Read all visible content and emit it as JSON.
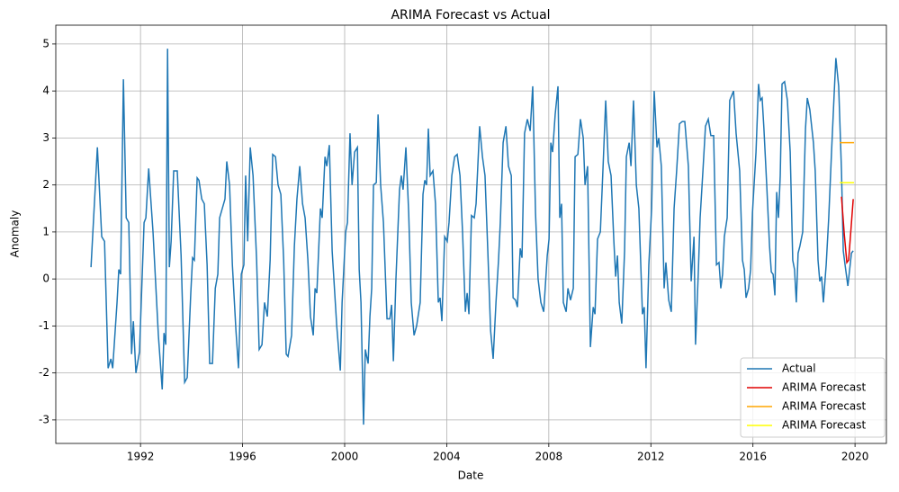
{
  "chart_data": {
    "type": "line",
    "title": "ARIMA Forecast vs Actual",
    "x_label": "Date",
    "y_label": "Anomaly",
    "xlim": [
      1988.68,
      2021.23
    ],
    "ylim": [
      -3.5,
      5.4
    ],
    "xticks": [
      1992,
      1996,
      2000,
      2004,
      2008,
      2012,
      2016,
      2020
    ],
    "yticks": [
      -3,
      -2,
      -1,
      0,
      1,
      2,
      3,
      4,
      5
    ],
    "grid": true,
    "legend": "lower right",
    "series": [
      {
        "name": "Actual",
        "color": "#1f77b4",
        "x": [
          1990.06,
          1990.31,
          1990.48,
          1990.59,
          1990.73,
          1990.84,
          1990.91,
          1991.08,
          1991.15,
          1991.22,
          1991.33,
          1991.44,
          1991.54,
          1991.65,
          1991.72,
          1991.82,
          1991.96,
          1992.14,
          1992.21,
          1992.32,
          1992.49,
          1992.7,
          1992.85,
          1992.92,
          1992.99,
          1993.06,
          1993.13,
          1993.2,
          1993.3,
          1993.44,
          1993.59,
          1993.73,
          1993.83,
          1993.97,
          1994.04,
          1994.11,
          1994.22,
          1994.29,
          1994.4,
          1994.5,
          1994.61,
          1994.71,
          1994.82,
          1994.93,
          1995.03,
          1995.1,
          1995.31,
          1995.38,
          1995.49,
          1995.6,
          1995.74,
          1995.84,
          1995.95,
          1996.05,
          1996.12,
          1996.2,
          1996.3,
          1996.41,
          1996.55,
          1996.65,
          1996.76,
          1996.86,
          1996.97,
          1997.08,
          1997.18,
          1997.29,
          1997.39,
          1997.5,
          1997.61,
          1997.71,
          1997.78,
          1997.92,
          1998.03,
          1998.13,
          1998.24,
          1998.35,
          1998.45,
          1998.56,
          1998.66,
          1998.77,
          1998.84,
          1998.91,
          1999.05,
          1999.12,
          1999.23,
          1999.3,
          1999.4,
          1999.51,
          1999.69,
          1999.83,
          1999.9,
          2000.04,
          2000.11,
          2000.21,
          2000.29,
          2000.39,
          2000.5,
          2000.57,
          2000.64,
          2000.74,
          2000.81,
          2000.92,
          2000.99,
          2001.06,
          2001.13,
          2001.24,
          2001.31,
          2001.41,
          2001.52,
          2001.66,
          2001.77,
          2001.84,
          2001.91,
          2002.01,
          2002.15,
          2002.22,
          2002.29,
          2002.4,
          2002.51,
          2002.61,
          2002.72,
          2002.82,
          2002.96,
          2003.07,
          2003.14,
          2003.21,
          2003.28,
          2003.35,
          2003.46,
          2003.56,
          2003.67,
          2003.74,
          2003.81,
          2003.92,
          2004.02,
          2004.09,
          2004.2,
          2004.31,
          2004.41,
          2004.52,
          2004.62,
          2004.73,
          2004.8,
          2004.87,
          2004.97,
          2005.08,
          2005.15,
          2005.29,
          2005.4,
          2005.5,
          2005.61,
          2005.72,
          2005.82,
          2005.93,
          2006.03,
          2006.1,
          2006.21,
          2006.32,
          2006.42,
          2006.53,
          2006.6,
          2006.7,
          2006.77,
          2006.88,
          2006.95,
          2007.05,
          2007.16,
          2007.27,
          2007.37,
          2007.48,
          2007.58,
          2007.69,
          2007.8,
          2007.94,
          2008.01,
          2008.08,
          2008.15,
          2008.25,
          2008.36,
          2008.43,
          2008.5,
          2008.57,
          2008.68,
          2008.75,
          2008.85,
          2008.96,
          2009.03,
          2009.14,
          2009.24,
          2009.35,
          2009.42,
          2009.52,
          2009.63,
          2009.74,
          2009.81,
          2009.91,
          2010.02,
          2010.12,
          2010.23,
          2010.33,
          2010.44,
          2010.55,
          2010.62,
          2010.69,
          2010.76,
          2010.86,
          2010.97,
          2011.04,
          2011.15,
          2011.22,
          2011.32,
          2011.43,
          2011.53,
          2011.67,
          2011.74,
          2011.81,
          2011.92,
          2012.03,
          2012.13,
          2012.24,
          2012.31,
          2012.41,
          2012.52,
          2012.59,
          2012.7,
          2012.8,
          2012.91,
          2013.01,
          2013.12,
          2013.23,
          2013.33,
          2013.47,
          2013.58,
          2013.69,
          2013.75,
          2013.86,
          2013.93,
          2014.04,
          2014.14,
          2014.25,
          2014.35,
          2014.46,
          2014.57,
          2014.67,
          2014.74,
          2014.81,
          2014.88,
          2014.99,
          2015.09,
          2015.24,
          2015.34,
          2015.48,
          2015.59,
          2015.66,
          2015.73,
          2015.83,
          2015.91,
          2015.98,
          2016.12,
          2016.22,
          2016.29,
          2016.36,
          2016.43,
          2016.54,
          2016.65,
          2016.72,
          2016.79,
          2016.86,
          2016.93,
          2017.0,
          2017.07,
          2017.14,
          2017.24,
          2017.35,
          2017.46,
          2017.56,
          2017.63,
          2017.7,
          2017.77,
          2017.84,
          2017.95,
          2018.06,
          2018.13,
          2018.23,
          2018.37,
          2018.44,
          2018.55,
          2018.62,
          2018.69,
          2018.76,
          2018.87,
          2018.97,
          2019.08,
          2019.18,
          2019.25,
          2019.36,
          2019.47,
          2019.54,
          2019.61,
          2019.72,
          2019.79,
          2019.86,
          2019.93
        ],
        "values": [
          0.25,
          2.8,
          0.9,
          0.8,
          -1.9,
          -1.7,
          -1.9,
          -0.5,
          0.2,
          0.1,
          4.25,
          1.3,
          1.2,
          -1.6,
          -0.9,
          -2.0,
          -1.55,
          1.2,
          1.3,
          2.35,
          1.0,
          -1.2,
          -2.35,
          -1.15,
          -1.4,
          4.9,
          0.25,
          0.8,
          2.3,
          2.3,
          0.5,
          -2.2,
          -2.1,
          -0.3,
          0.45,
          0.4,
          2.15,
          2.1,
          1.7,
          1.6,
          0.3,
          -1.8,
          -1.8,
          -0.2,
          0.1,
          1.3,
          1.7,
          2.5,
          2.0,
          0.3,
          -1.1,
          -1.9,
          0.1,
          0.3,
          2.2,
          0.8,
          2.8,
          2.2,
          0.4,
          -1.5,
          -1.4,
          -0.5,
          -0.8,
          0.4,
          2.65,
          2.6,
          2.0,
          1.8,
          0.4,
          -1.6,
          -1.65,
          -1.2,
          0.7,
          1.7,
          2.4,
          1.6,
          1.3,
          0.4,
          -0.8,
          -1.2,
          -0.2,
          -0.3,
          1.5,
          1.3,
          2.6,
          2.4,
          2.85,
          0.6,
          -1.0,
          -1.95,
          -0.5,
          1.0,
          1.2,
          3.1,
          2.0,
          2.7,
          2.8,
          0.2,
          -0.5,
          -3.1,
          -1.5,
          -1.8,
          -0.8,
          -0.2,
          2.0,
          2.05,
          3.5,
          2.0,
          1.2,
          -0.85,
          -0.85,
          -0.55,
          -1.75,
          0.0,
          1.9,
          2.2,
          1.9,
          2.8,
          1.4,
          -0.5,
          -1.2,
          -1.0,
          -0.5,
          1.8,
          2.1,
          2.0,
          3.2,
          2.2,
          2.3,
          1.6,
          -0.5,
          -0.4,
          -0.9,
          0.9,
          0.8,
          1.2,
          2.2,
          2.6,
          2.65,
          2.2,
          1.0,
          -0.7,
          -0.3,
          -0.75,
          1.35,
          1.3,
          1.6,
          3.25,
          2.6,
          2.2,
          0.6,
          -1.1,
          -1.7,
          -0.5,
          0.4,
          1.2,
          2.9,
          3.25,
          2.4,
          2.2,
          -0.4,
          -0.45,
          -0.6,
          0.65,
          0.45,
          3.1,
          3.4,
          3.15,
          4.1,
          1.4,
          0.0,
          -0.5,
          -0.7,
          0.5,
          0.85,
          2.9,
          2.7,
          3.5,
          4.1,
          1.3,
          1.6,
          -0.5,
          -0.7,
          -0.2,
          -0.45,
          -0.2,
          2.6,
          2.65,
          3.4,
          3.0,
          2.0,
          2.4,
          -1.45,
          -0.6,
          -0.75,
          0.85,
          1.0,
          2.3,
          3.8,
          2.5,
          2.2,
          0.8,
          0.05,
          0.5,
          -0.5,
          -0.95,
          0.6,
          2.6,
          2.9,
          2.4,
          3.8,
          2.0,
          1.5,
          -0.75,
          -0.6,
          -1.9,
          0.3,
          1.5,
          4.0,
          2.8,
          3.0,
          2.4,
          -0.2,
          0.35,
          -0.45,
          -0.7,
          1.5,
          2.3,
          3.3,
          3.35,
          3.35,
          2.4,
          -0.05,
          0.9,
          -1.4,
          0.15,
          1.3,
          2.3,
          3.25,
          3.4,
          3.05,
          3.05,
          0.3,
          0.35,
          -0.2,
          0.1,
          0.9,
          1.3,
          3.8,
          4.0,
          3.1,
          2.3,
          0.4,
          0.2,
          -0.4,
          -0.2,
          0.2,
          1.4,
          2.7,
          4.15,
          3.8,
          3.85,
          3.2,
          2.0,
          0.7,
          0.15,
          0.1,
          -0.35,
          1.85,
          1.3,
          2.2,
          4.15,
          4.2,
          3.8,
          2.7,
          0.4,
          0.2,
          -0.5,
          0.55,
          0.7,
          1.0,
          3.2,
          3.85,
          3.6,
          2.9,
          2.3,
          0.4,
          -0.05,
          0.05,
          -0.5,
          0.3,
          1.3,
          2.7,
          3.9,
          4.7,
          4.1,
          2.3,
          0.6,
          0.3,
          -0.15,
          0.2,
          0.55,
          0.6
        ]
      },
      {
        "name": "ARIMA Forecast",
        "color": "#e00000",
        "x": [
          2019.47,
          2019.58,
          2019.68,
          2019.75,
          2019.82,
          2019.93
        ],
        "values": [
          1.75,
          0.95,
          0.35,
          0.4,
          0.9,
          1.7
        ]
      },
      {
        "name": "ARIMA Forecast",
        "color": "#ffa500",
        "x": [
          2019.4,
          2019.96
        ],
        "values": [
          2.9,
          2.9
        ]
      },
      {
        "name": "ARIMA Forecast",
        "color": "#ffff00",
        "x": [
          2019.4,
          2019.96
        ],
        "values": [
          2.05,
          2.05
        ]
      }
    ]
  }
}
